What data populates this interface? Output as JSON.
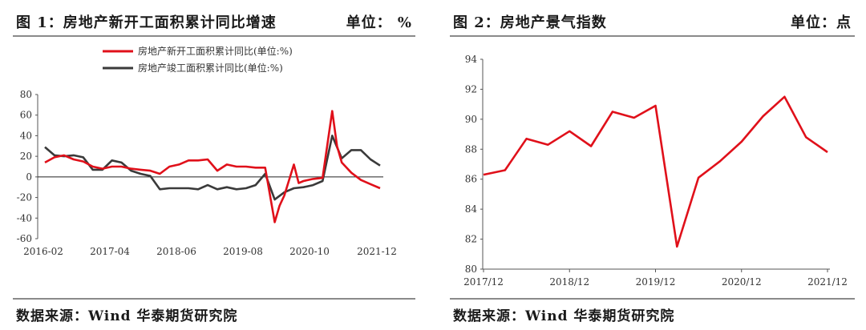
{
  "chart_data": [
    {
      "type": "line",
      "title": "图 1：房地产新开工面积累计同比增速",
      "unit_label": "单位：  %",
      "source_label": "数据来源：",
      "source_value": "Wind  华泰期货研究院",
      "x_tick_labels": [
        "2016-02",
        "2017-04",
        "2018-06",
        "2019-08",
        "2020-10",
        "2021-12"
      ],
      "x_range": [
        "2016-02",
        "2021-12"
      ],
      "ylim": [
        -60,
        80
      ],
      "y_ticks": [
        -60,
        -40,
        -20,
        0,
        20,
        40,
        60,
        80
      ],
      "zero_line": true,
      "grid": false,
      "legend": "top-center",
      "series": [
        {
          "name": "房地产新开工面积累计同比(单位:%)",
          "color": "#e0101a",
          "points": [
            [
              "2016-02",
              14
            ],
            [
              "2016-04",
              19
            ],
            [
              "2016-06",
              21
            ],
            [
              "2016-08",
              17
            ],
            [
              "2016-10",
              15
            ],
            [
              "2016-12",
              10
            ],
            [
              "2017-02",
              8
            ],
            [
              "2017-04",
              10
            ],
            [
              "2017-06",
              10
            ],
            [
              "2017-08",
              8
            ],
            [
              "2017-10",
              7
            ],
            [
              "2017-12",
              6
            ],
            [
              "2018-02",
              3
            ],
            [
              "2018-04",
              10
            ],
            [
              "2018-06",
              12
            ],
            [
              "2018-08",
              16
            ],
            [
              "2018-10",
              16
            ],
            [
              "2018-12",
              17
            ],
            [
              "2019-02",
              6
            ],
            [
              "2019-04",
              12
            ],
            [
              "2019-06",
              10
            ],
            [
              "2019-08",
              10
            ],
            [
              "2019-10",
              9
            ],
            [
              "2019-12",
              9
            ],
            [
              "2020-02",
              -44
            ],
            [
              "2020-03",
              -28
            ],
            [
              "2020-04",
              -18
            ],
            [
              "2020-06",
              12
            ],
            [
              "2020-07",
              -6
            ],
            [
              "2020-08",
              -4
            ],
            [
              "2020-10",
              -2
            ],
            [
              "2020-12",
              -1
            ],
            [
              "2021-02",
              64
            ],
            [
              "2021-03",
              30
            ],
            [
              "2021-04",
              14
            ],
            [
              "2021-06",
              4
            ],
            [
              "2021-08",
              -3
            ],
            [
              "2021-10",
              -7
            ],
            [
              "2021-12",
              -11
            ]
          ]
        },
        {
          "name": "房地产竣工面积累计同比(单位:%)",
          "color": "#3a3a3a",
          "points": [
            [
              "2016-02",
              29
            ],
            [
              "2016-04",
              21
            ],
            [
              "2016-06",
              20
            ],
            [
              "2016-08",
              21
            ],
            [
              "2016-10",
              19
            ],
            [
              "2016-12",
              7
            ],
            [
              "2017-02",
              7
            ],
            [
              "2017-04",
              16
            ],
            [
              "2017-06",
              14
            ],
            [
              "2017-08",
              6
            ],
            [
              "2017-10",
              3
            ],
            [
              "2017-12",
              1
            ],
            [
              "2018-02",
              -12
            ],
            [
              "2018-04",
              -11
            ],
            [
              "2018-06",
              -11
            ],
            [
              "2018-08",
              -11
            ],
            [
              "2018-10",
              -12
            ],
            [
              "2018-12",
              -8
            ],
            [
              "2019-02",
              -12
            ],
            [
              "2019-04",
              -10
            ],
            [
              "2019-06",
              -12
            ],
            [
              "2019-08",
              -11
            ],
            [
              "2019-10",
              -8
            ],
            [
              "2019-12",
              3
            ],
            [
              "2020-02",
              -22
            ],
            [
              "2020-04",
              -15
            ],
            [
              "2020-06",
              -11
            ],
            [
              "2020-08",
              -10
            ],
            [
              "2020-10",
              -8
            ],
            [
              "2020-12",
              -4
            ],
            [
              "2021-02",
              40
            ],
            [
              "2021-04",
              18
            ],
            [
              "2021-06",
              26
            ],
            [
              "2021-08",
              26
            ],
            [
              "2021-10",
              17
            ],
            [
              "2021-12",
              11
            ]
          ]
        }
      ]
    },
    {
      "type": "line",
      "title": "图 2：房地产景气指数",
      "unit_label": "单位：点",
      "source_label": "数据来源：",
      "source_value": "Wind  华泰期货研究院",
      "x_tick_labels": [
        "2017/12",
        "2018/12",
        "2019/12",
        "2020/12",
        "2021/12"
      ],
      "x_range": [
        "2017-12",
        "2021-12"
      ],
      "ylim": [
        80,
        94
      ],
      "y_ticks": [
        80,
        82,
        84,
        86,
        88,
        90,
        92,
        94
      ],
      "grid": false,
      "series": [
        {
          "color": "#e0101a",
          "points": [
            [
              "2017-12",
              86.3
            ],
            [
              "2018-03",
              86.6
            ],
            [
              "2018-06",
              88.7
            ],
            [
              "2018-09",
              88.3
            ],
            [
              "2018-12",
              89.2
            ],
            [
              "2019-03",
              88.2
            ],
            [
              "2019-06",
              90.5
            ],
            [
              "2019-09",
              90.1
            ],
            [
              "2019-12",
              90.9
            ],
            [
              "2020-03",
              81.5
            ],
            [
              "2020-06",
              86.1
            ],
            [
              "2020-09",
              87.2
            ],
            [
              "2020-12",
              88.5
            ],
            [
              "2021-03",
              90.2
            ],
            [
              "2021-06",
              91.5
            ],
            [
              "2021-09",
              88.8
            ],
            [
              "2021-12",
              87.8
            ]
          ]
        }
      ]
    }
  ]
}
